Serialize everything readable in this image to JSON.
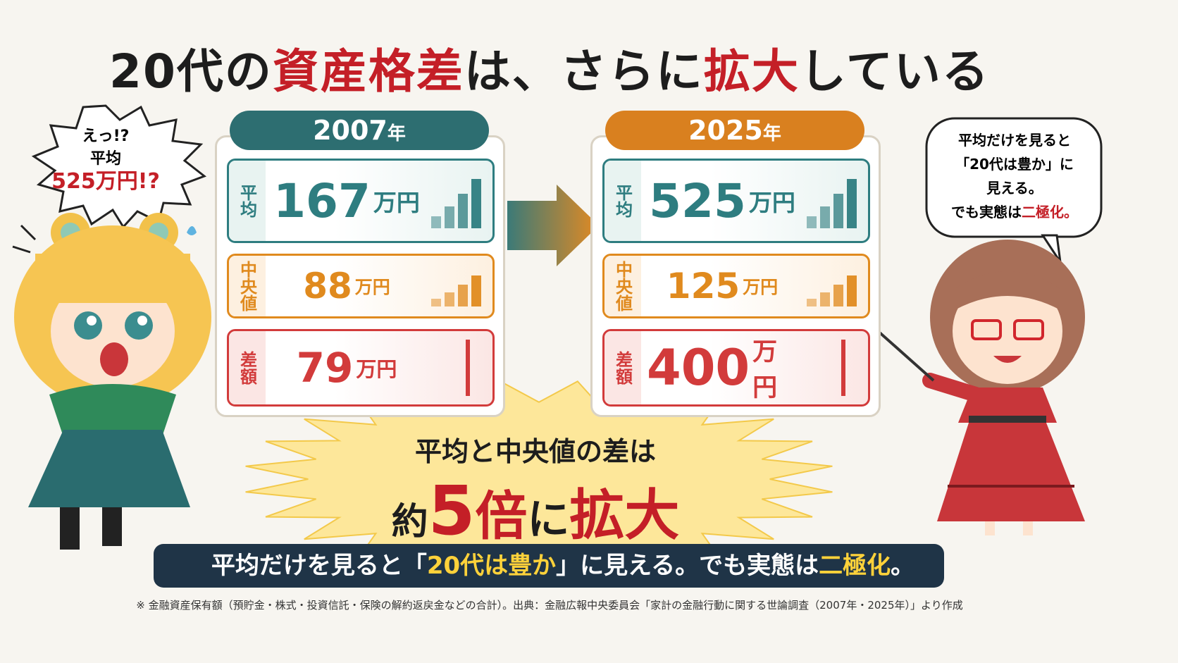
{
  "title": [
    "20代の",
    "資産格差",
    "は、さらに",
    "拡大",
    "している"
  ],
  "panels": [
    {
      "year": "2007",
      "year_unit": "年",
      "rows": [
        {
          "label": "平均",
          "value": 167,
          "unit": "万円"
        },
        {
          "label": "中央値",
          "value": 88,
          "unit": "万円"
        },
        {
          "label": "差額",
          "value": 79,
          "unit": "万円"
        }
      ]
    },
    {
      "year": "2025",
      "year_unit": "年",
      "rows": [
        {
          "label": "平均",
          "value": 525,
          "unit": "万円"
        },
        {
          "label": "中央値",
          "value": 125,
          "unit": "万円"
        },
        {
          "label": "差額",
          "value": 400,
          "unit": "万円"
        }
      ]
    }
  ],
  "left_bubble": [
    "えっ!?",
    "平均",
    "525万円!?"
  ],
  "right_bubble": [
    "平均だけを見ると",
    "「20代は豊か」に",
    "見える。",
    "でも実態は",
    "二極化。"
  ],
  "callout": {
    "line1": "平均と中央値の差は",
    "line2": [
      "約",
      "5",
      "倍",
      "に",
      "拡大"
    ]
  },
  "banner": [
    "平均だけを見ると「",
    "20代は豊か",
    "」に見える。でも実態は",
    "二極化",
    "。"
  ],
  "footnote": "※ 金融資産保有額（預貯金・株式・投資信託・保険の解約返戻金などの合計）。出典：金融広報中央委員会「家計の金融行動に関する世論調査（2007年・2025年）」より作成"
}
